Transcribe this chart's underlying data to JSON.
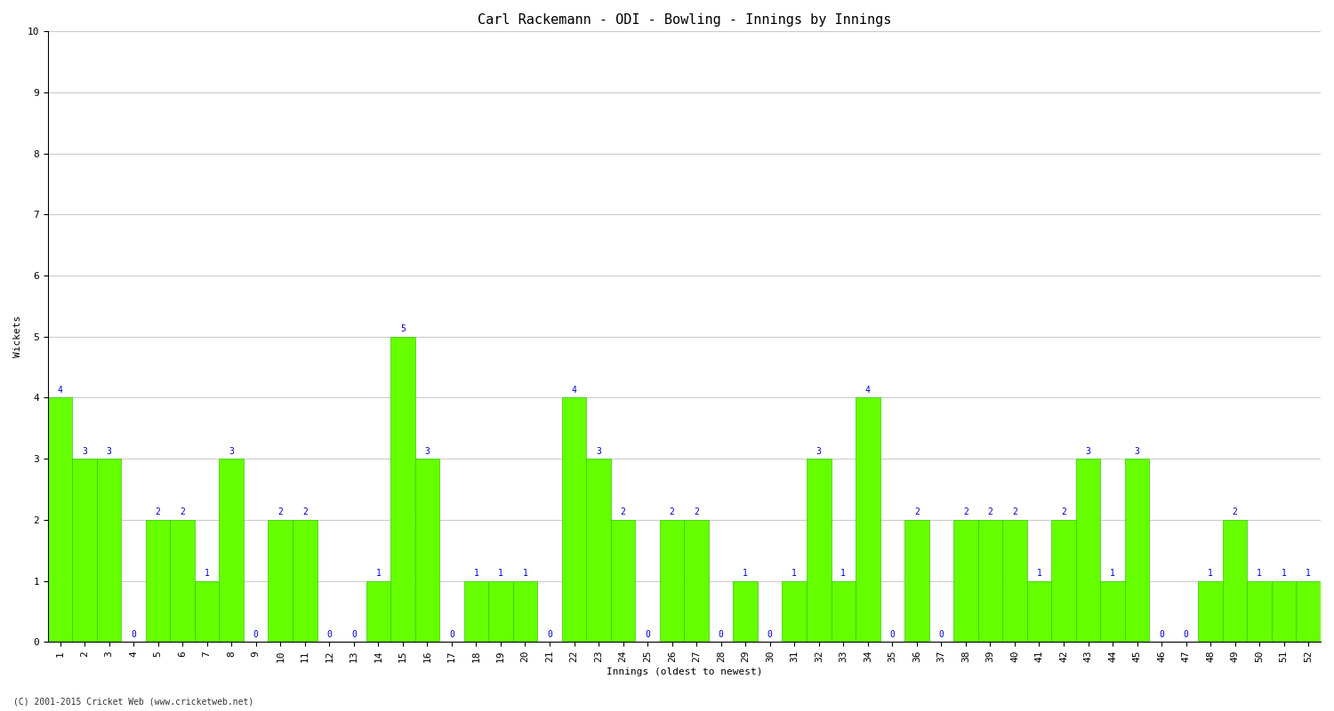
{
  "title": "Carl Rackemann - ODI - Bowling - Innings by Innings",
  "xlabel": "Innings (oldest to newest)",
  "ylabel": "Wickets",
  "footnote": "(C) 2001-2015 Cricket Web (www.cricketweb.net)",
  "bar_color": "#66ff00",
  "bar_edge_color": "#33cc00",
  "ylim": [
    0,
    10
  ],
  "yticks": [
    0,
    1,
    2,
    3,
    4,
    5,
    6,
    7,
    8,
    9,
    10
  ],
  "innings": [
    1,
    2,
    3,
    4,
    5,
    6,
    7,
    8,
    9,
    10,
    11,
    12,
    13,
    14,
    15,
    16,
    17,
    18,
    19,
    20,
    21,
    22,
    23,
    24,
    25,
    26,
    27,
    28,
    29,
    30,
    31,
    32,
    33,
    34,
    35,
    36,
    37,
    38,
    39,
    40,
    41,
    42,
    43,
    44,
    45,
    46,
    47,
    48,
    49,
    50,
    51,
    52
  ],
  "wickets": [
    4,
    3,
    3,
    0,
    2,
    2,
    1,
    3,
    0,
    2,
    2,
    0,
    0,
    1,
    5,
    3,
    0,
    1,
    1,
    1,
    0,
    4,
    3,
    2,
    0,
    2,
    2,
    0,
    1,
    0,
    1,
    3,
    1,
    4,
    0,
    2,
    0,
    2,
    2,
    2,
    1,
    2,
    3,
    1,
    3,
    0,
    0,
    1,
    2,
    1,
    1,
    1
  ],
  "label_color": "#0000cc",
  "background_color": "#ffffff",
  "grid_color": "#cccccc",
  "title_fontsize": 11,
  "axis_fontsize": 8,
  "label_fontsize": 7,
  "tick_label_rotation": 90
}
